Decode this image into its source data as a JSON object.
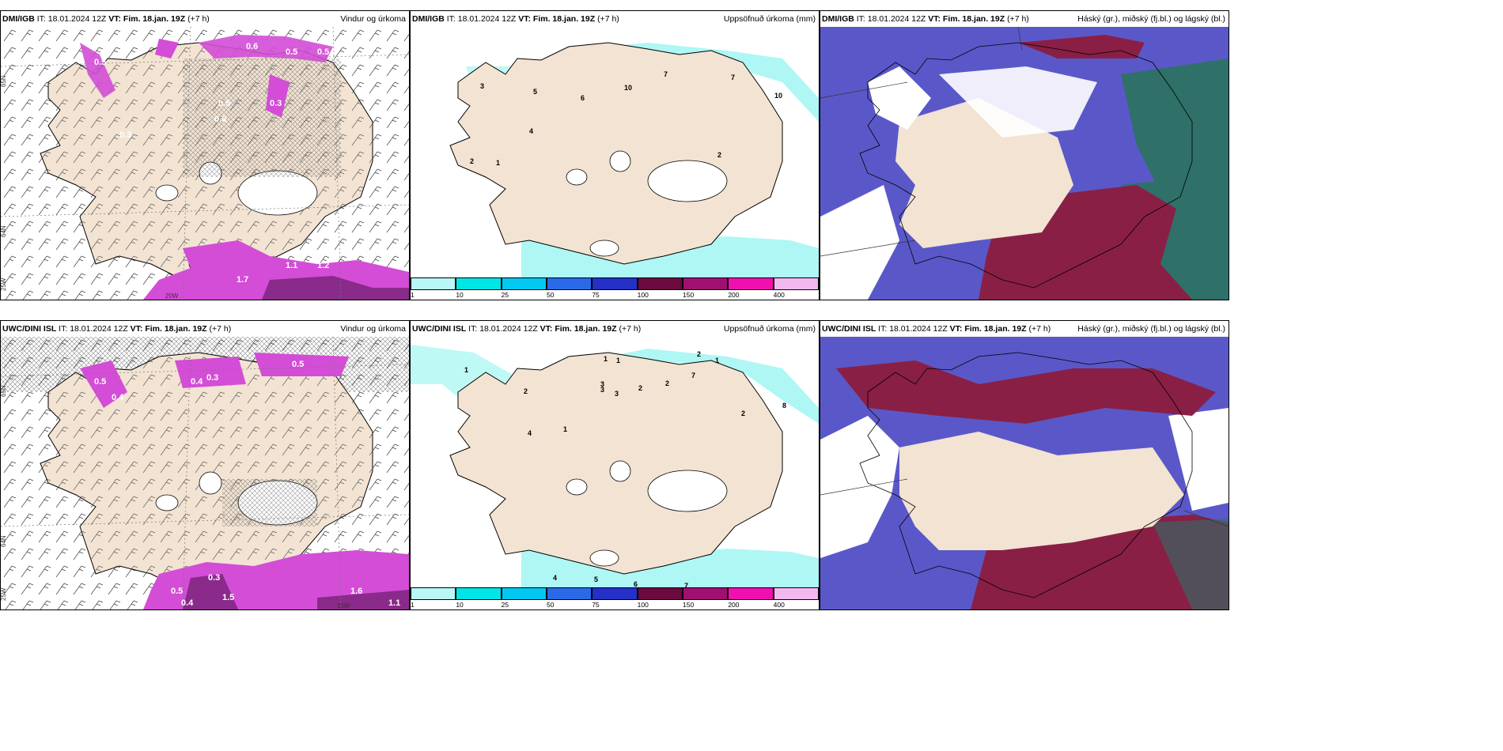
{
  "panels": [
    {
      "source": "DMI/IGB",
      "it_label": "IT:",
      "it_value": "18.01.2024 12Z",
      "vt_label": "VT: Fim. 18.jan. 19Z",
      "lead": "(+7 h)",
      "product": "Vindur og úrkoma",
      "lat_labels": [
        "65N",
        "64N",
        "25W",
        "20W"
      ],
      "values": [
        "0.5",
        "0.6",
        "0.5",
        "0.3",
        "0.5",
        "0.3",
        "0.6",
        "0.5",
        "1.1",
        "1.2",
        "1.7"
      ]
    },
    {
      "source": "DMI/IGB",
      "it_label": "IT:",
      "it_value": "18.01.2024 12Z",
      "vt_label": "VT: Fim. 18.jan. 19Z",
      "lead": "(+7 h)",
      "product": "Uppsöfnuð úrkoma (mm)",
      "lat_labels": [
        "65N",
        "64N"
      ],
      "values": [
        "3",
        "5",
        "6",
        "10",
        "7",
        "7",
        "10",
        "4",
        "2",
        "1",
        "2"
      ]
    },
    {
      "source": "DMI/IGB",
      "it_label": "IT:",
      "it_value": "18.01.2024 12Z",
      "vt_label": "VT: Fim. 18.jan. 19Z",
      "lead": "(+7 h)",
      "product": "Háský (gr.), miðský (fj.bl.) og lágský (bl.)",
      "lat_labels": [],
      "values": []
    },
    {
      "source": "UWC/DINI ISL",
      "it_label": "IT:",
      "it_value": "18.01.2024 12Z",
      "vt_label": "VT: Fim. 18.jan. 19Z",
      "lead": "(+7 h)",
      "product": "Vindur og úrkoma",
      "lat_labels": [
        "65N",
        "64N",
        "25W",
        "15W"
      ],
      "values": [
        "0.5",
        "0.4",
        "0.3",
        "0.4",
        "0.5",
        "0.3",
        "0.5",
        "0.4",
        "1.5",
        "1.6",
        "1.1"
      ]
    },
    {
      "source": "UWC/DINI ISL",
      "it_label": "IT:",
      "it_value": "18.01.2024 12Z",
      "vt_label": "VT: Fim. 18.jan. 19Z",
      "lead": "(+7 h)",
      "product": "Uppsöfnuð úrkoma (mm)",
      "lat_labels": [
        "65N",
        "64N"
      ],
      "values": [
        "1",
        "2",
        "1",
        "1",
        "3",
        "3",
        "2",
        "2",
        "7",
        "2",
        "1",
        "2",
        "8",
        "4",
        "1",
        "3",
        "4",
        "5",
        "6",
        "7"
      ]
    },
    {
      "source": "UWC/DINI ISL",
      "it_label": "IT:",
      "it_value": "18.01.2024 12Z",
      "vt_label": "VT: Fim. 18.jan. 19Z",
      "lead": "(+7 h)",
      "product": "Háský (gr.), miðský (fj.bl.) og lágský (bl.)",
      "lat_labels": [],
      "values": []
    }
  ],
  "precip_legend": {
    "colors": [
      "#b9f6f6",
      "#00e6e6",
      "#00c8f0",
      "#2a6ae8",
      "#2430c8",
      "#6a0a3e",
      "#a01070",
      "#f010b0",
      "#f4b8f0"
    ],
    "labels": [
      "1",
      "10",
      "25",
      "50",
      "75",
      "100",
      "150",
      "200",
      "400"
    ]
  },
  "colors": {
    "land": "#f2e3d3",
    "precip_magenta": "#d34dd6",
    "precip_dark": "#8a2a8a",
    "precip_light": "#aef7f4",
    "cloud_high": "#2f7069",
    "cloud_mid": "#8a1f45",
    "cloud_low": "#5a58c8"
  }
}
